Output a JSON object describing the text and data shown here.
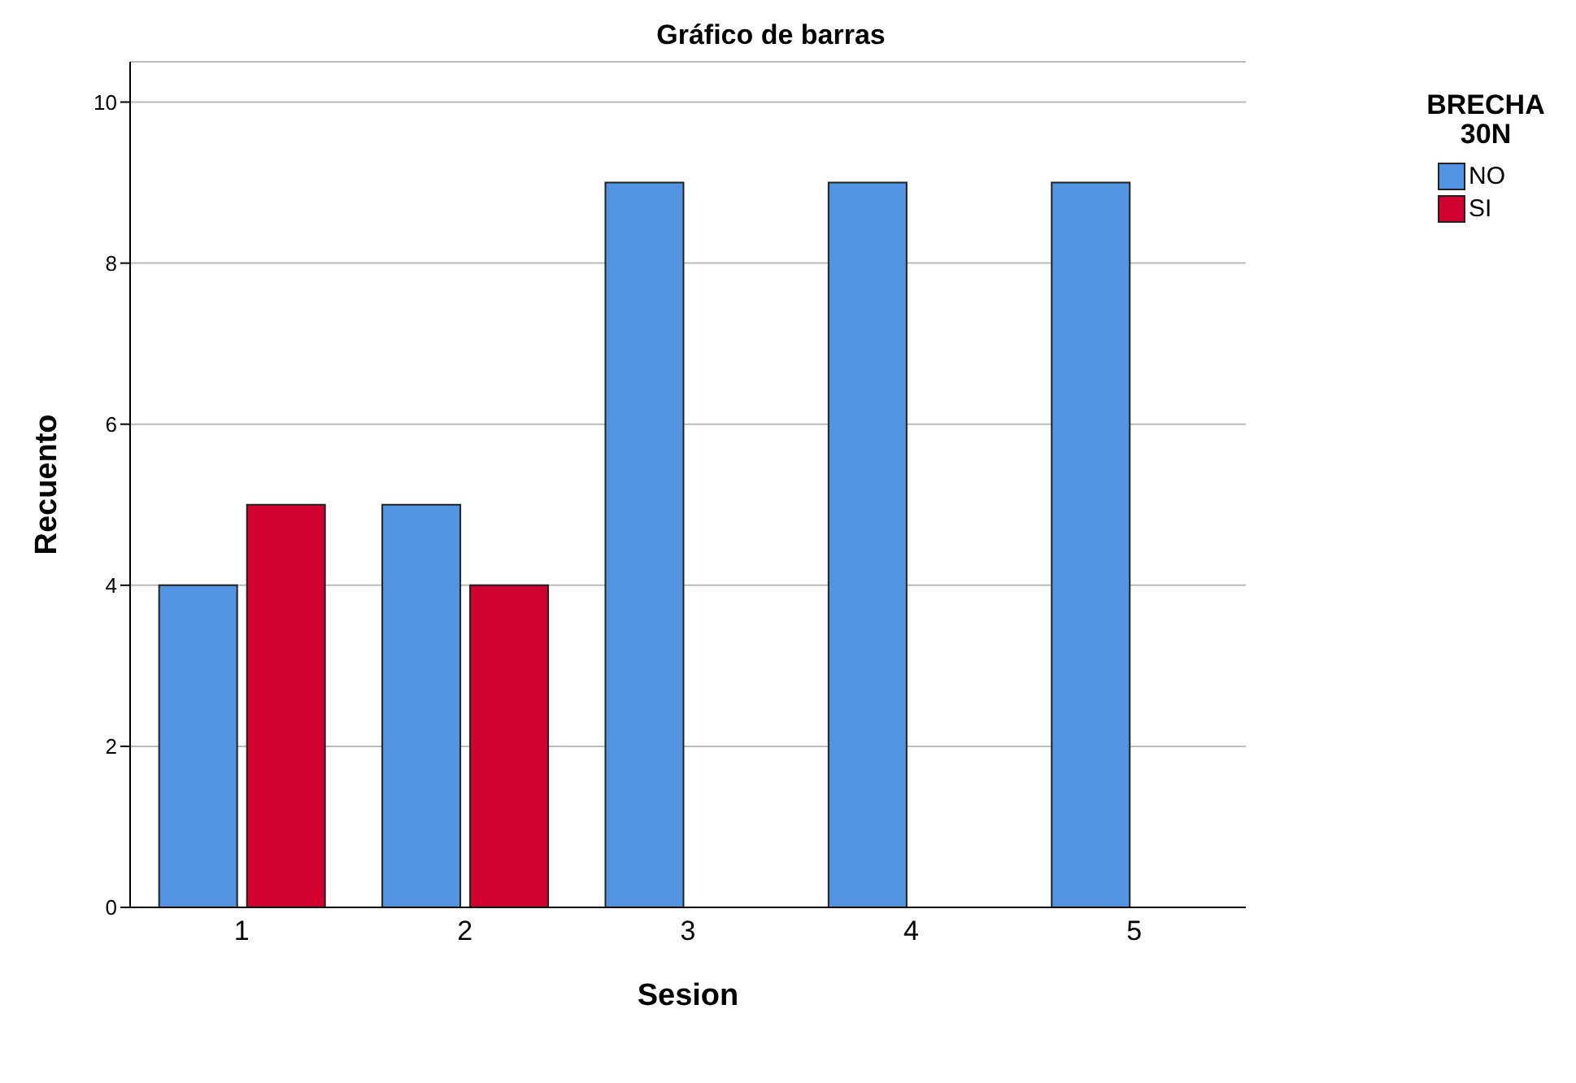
{
  "chart_data": {
    "type": "bar",
    "title": "Gráfico de barras",
    "xlabel": "Sesion",
    "ylabel": "Recuento",
    "legend_title": "BRECHA 30N",
    "categories": [
      "1",
      "2",
      "3",
      "4",
      "5"
    ],
    "series": [
      {
        "name": "NO",
        "color": "#5294e2",
        "values": [
          4,
          5,
          9,
          9,
          9
        ]
      },
      {
        "name": "SI",
        "color": "#d0002f",
        "values": [
          5,
          4,
          null,
          null,
          null
        ]
      }
    ],
    "ylim": [
      0,
      10.5
    ],
    "yticks": [
      0,
      2,
      4,
      6,
      8,
      10
    ],
    "grid": "y",
    "legend": "top right"
  }
}
